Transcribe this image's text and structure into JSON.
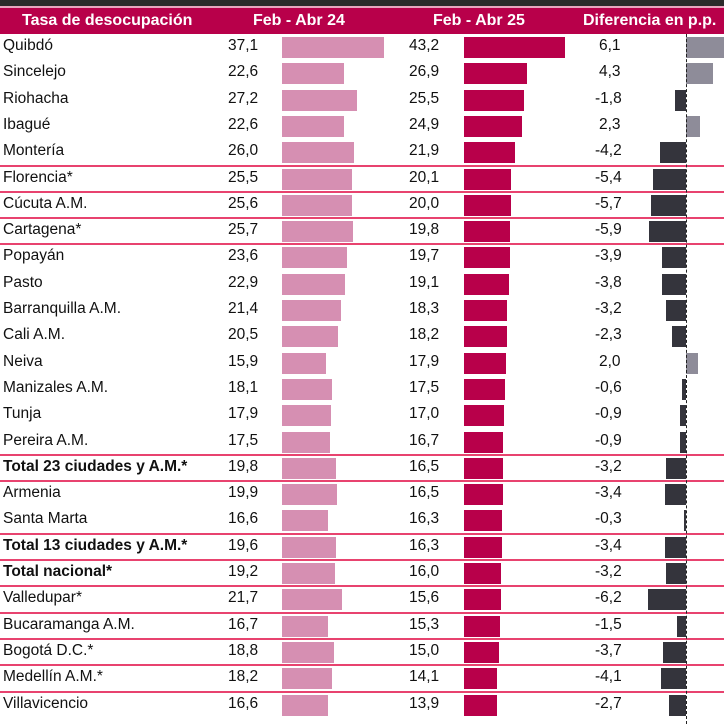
{
  "header": {
    "col1": "Tasa de desocupación",
    "col2": "Feb - Abr 24",
    "col3": "Feb - Abr 25",
    "col4": "Diferencia en p.p."
  },
  "colors": {
    "header_bg": "#b8004a",
    "bar_2024": "#d68fb2",
    "bar_2025": "#b8004a",
    "diff_positive": "#8e8c99",
    "diff_negative": "#34343c",
    "separator": "#e8436f"
  },
  "chart_data": {
    "type": "bar",
    "title": "Tasa de desocupación",
    "categories": [
      "Quibdó",
      "Sincelejo",
      "Riohacha",
      "Ibagué",
      "Montería",
      "Florencia*",
      "Cúcuta A.M.",
      "Cartagena*",
      "Popayán",
      "Pasto",
      "Barranquilla A.M.",
      "Cali A.M.",
      "Neiva",
      "Manizales A.M.",
      "Tunja",
      "Pereira A.M.",
      "Total 23 ciudades y A.M.*",
      "Armenia",
      "Santa Marta",
      "Total 13 ciudades y A.M.*",
      "Total nacional*",
      "Valledupar*",
      "Bucaramanga A.M.",
      "Bogotá D.C.*",
      "Medellín A.M.*",
      "Villavicencio"
    ],
    "bold": [
      false,
      false,
      false,
      false,
      false,
      false,
      false,
      false,
      false,
      false,
      false,
      false,
      false,
      false,
      false,
      false,
      true,
      false,
      false,
      true,
      true,
      false,
      false,
      false,
      false,
      false
    ],
    "separator_after": [
      false,
      false,
      false,
      false,
      true,
      true,
      true,
      true,
      false,
      false,
      false,
      false,
      false,
      false,
      false,
      true,
      true,
      false,
      true,
      true,
      true,
      true,
      true,
      true,
      true,
      false
    ],
    "series": [
      {
        "name": "Feb - Abr 24",
        "values": [
          37.1,
          22.6,
          27.2,
          22.6,
          26.0,
          25.5,
          25.6,
          25.7,
          23.6,
          22.9,
          21.4,
          20.5,
          15.9,
          18.1,
          17.9,
          17.5,
          19.8,
          19.9,
          16.6,
          19.6,
          19.2,
          21.7,
          16.7,
          18.8,
          18.2,
          16.6
        ],
        "labels": [
          "37,1",
          "22,6",
          "27,2",
          "22,6",
          "26,0",
          "25,5",
          "25,6",
          "25,7",
          "23,6",
          "22,9",
          "21,4",
          "20,5",
          "15,9",
          "18,1",
          "17,9",
          "17,5",
          "19,8",
          "19,9",
          "16,6",
          "19,6",
          "19,2",
          "21,7",
          "16,7",
          "18,8",
          "18,2",
          "16,6"
        ]
      },
      {
        "name": "Feb - Abr 25",
        "values": [
          43.2,
          26.9,
          25.5,
          24.9,
          21.9,
          20.1,
          20.0,
          19.8,
          19.7,
          19.1,
          18.3,
          18.2,
          17.9,
          17.5,
          17.0,
          16.7,
          16.5,
          16.5,
          16.3,
          16.3,
          16.0,
          15.6,
          15.3,
          15.0,
          14.1,
          13.9
        ],
        "labels": [
          "43,2",
          "26,9",
          "25,5",
          "24,9",
          "21,9",
          "20,1",
          "20,0",
          "19,8",
          "19,7",
          "19,1",
          "18,3",
          "18,2",
          "17,9",
          "17,5",
          "17,0",
          "16,7",
          "16,5",
          "16,5",
          "16,3",
          "16,3",
          "16,0",
          "15,6",
          "15,3",
          "15,0",
          "14,1",
          "13,9"
        ]
      },
      {
        "name": "Diferencia en p.p.",
        "values": [
          6.1,
          4.3,
          -1.8,
          2.3,
          -4.2,
          -5.4,
          -5.7,
          -5.9,
          -3.9,
          -3.8,
          -3.2,
          -2.3,
          2.0,
          -0.6,
          -0.9,
          -0.9,
          -3.2,
          -3.4,
          -0.3,
          -3.4,
          -3.2,
          -6.2,
          -1.5,
          -3.7,
          -4.1,
          -2.7
        ],
        "labels": [
          "6,1",
          "4,3",
          "-1,8",
          "2,3",
          "-4,2",
          "-5,4",
          "-5,7",
          "-5,9",
          "-3,9",
          "-3,8",
          "-3,2",
          "-2,3",
          "2,0",
          "-0,6",
          "-0,9",
          "-0,9",
          "-3,2",
          "-3,4",
          "-0,3",
          "-3,4",
          "-3,2",
          "-6,2",
          "-1,5",
          "-3,7",
          "-4,1",
          "-2,7"
        ]
      }
    ],
    "xlabel": "",
    "ylabel": "",
    "legend": "none",
    "grid": false
  }
}
